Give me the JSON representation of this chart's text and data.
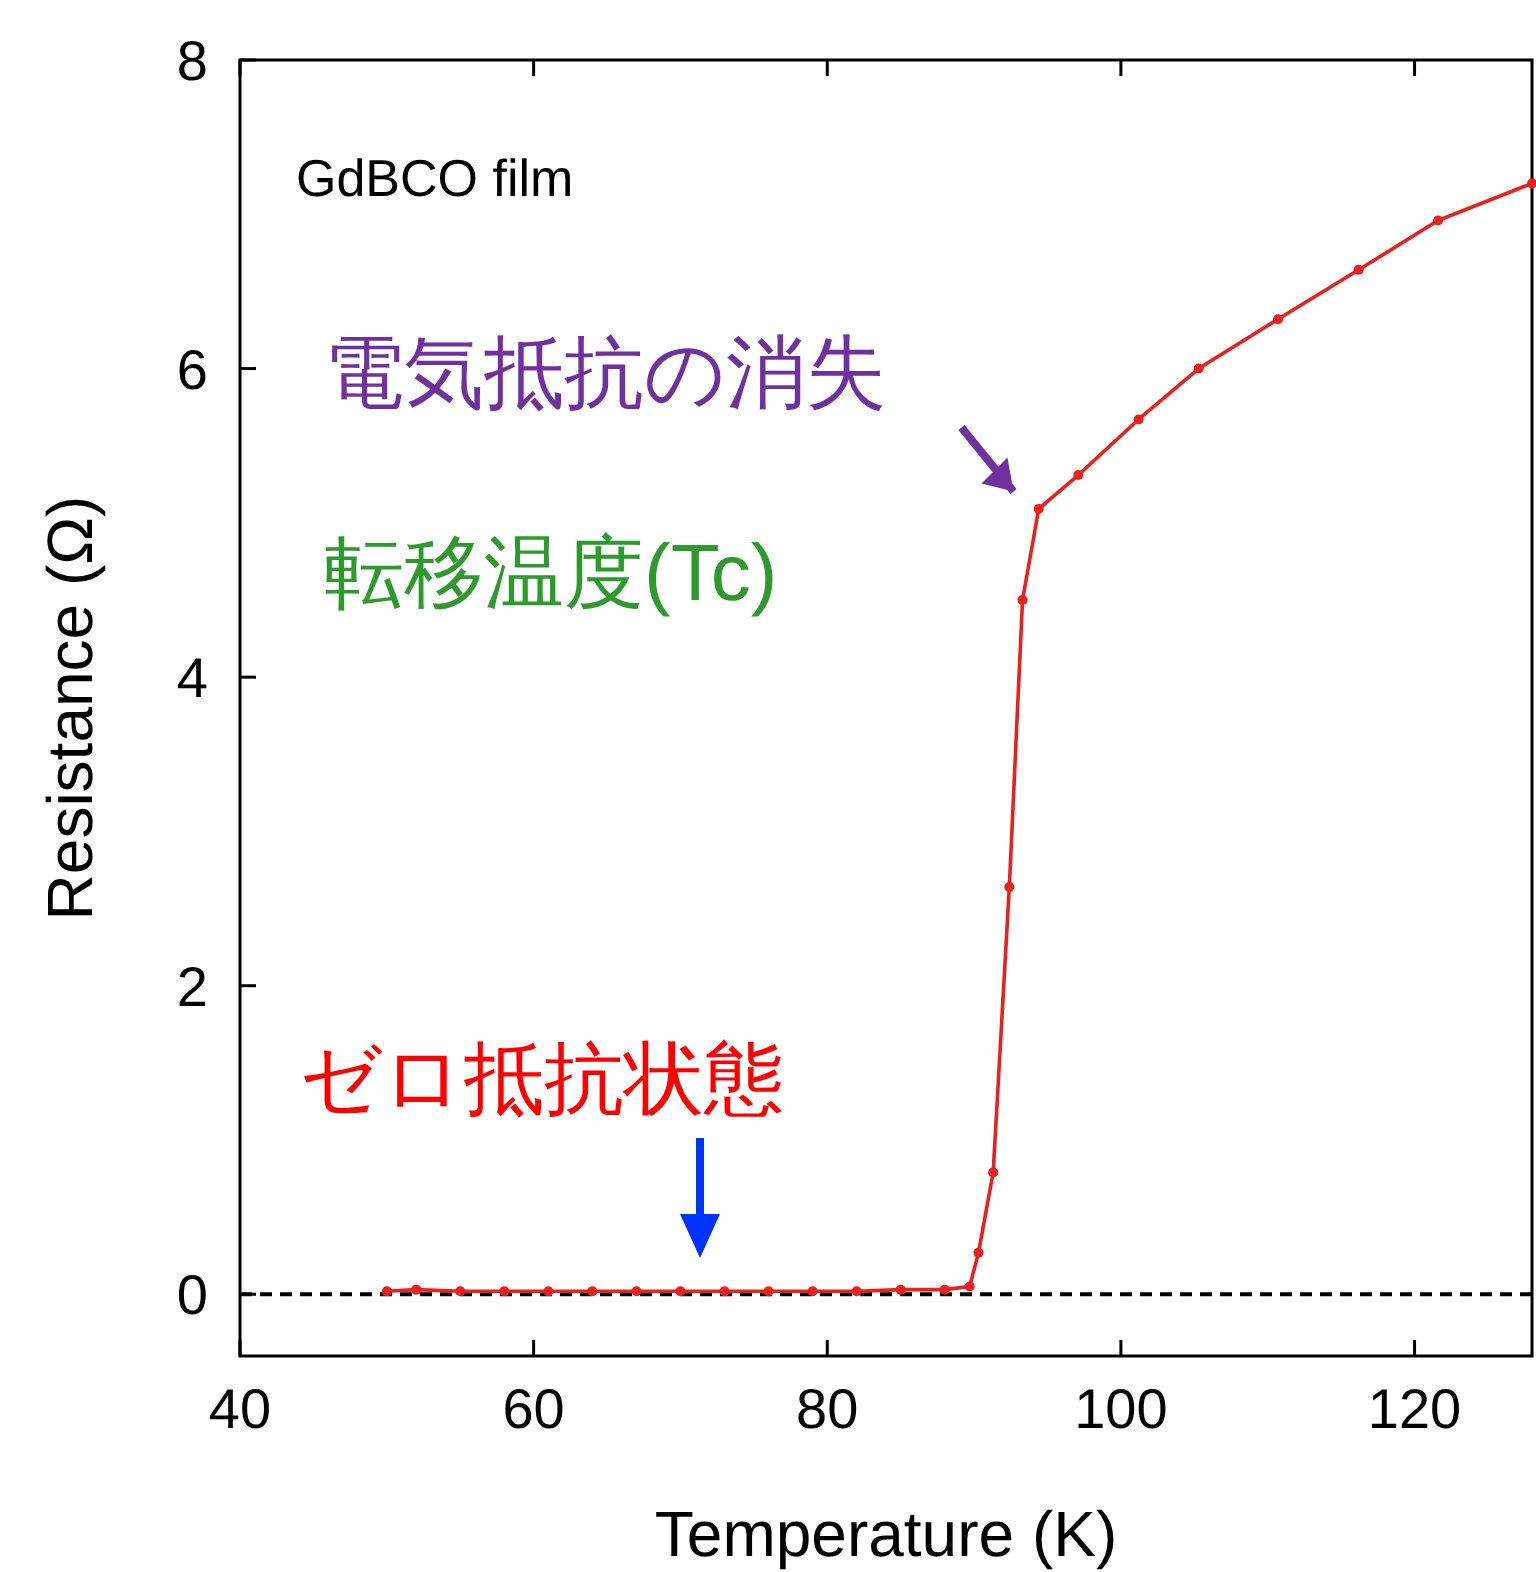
{
  "chart_data": {
    "type": "line",
    "xlabel": "Temperature (K)",
    "ylabel": "Resistance (Ω)",
    "xlim": [
      40,
      128
    ],
    "ylim": [
      -0.4,
      8
    ],
    "xticks": [
      40,
      60,
      80,
      100,
      120
    ],
    "yticks": [
      0,
      2,
      4,
      6,
      8
    ],
    "grid": false,
    "marker": "circle",
    "line_style": "solid",
    "series": [
      {
        "color": "#e8201e",
        "x": [
          50,
          52,
          55,
          58,
          61,
          64,
          67,
          70,
          73,
          76,
          79,
          82,
          85,
          88,
          89.7,
          90.3,
          91.3,
          92.4,
          93.3,
          94.4,
          97.1,
          101.2,
          105.3,
          110.7,
          116.2,
          121.6,
          128
        ],
        "values": [
          0.02,
          0.03,
          0.02,
          0.02,
          0.02,
          0.02,
          0.02,
          0.02,
          0.02,
          0.02,
          0.02,
          0.02,
          0.03,
          0.03,
          0.05,
          0.27,
          0.79,
          2.64,
          4.5,
          5.09,
          5.31,
          5.67,
          6.0,
          6.32,
          6.64,
          6.96,
          7.2
        ]
      }
    ],
    "ref_lines": [
      {
        "axis": "y",
        "value": 0,
        "color": "#000000",
        "line_style": "dashed"
      }
    ],
    "annotations": [
      "GdBCO film",
      {
        "text": "電気抵抗の消失",
        "x": 93.5,
        "y": 5.1
      },
      "転移温度(Tc)",
      "ゼロ抵抗状態"
    ]
  }
}
